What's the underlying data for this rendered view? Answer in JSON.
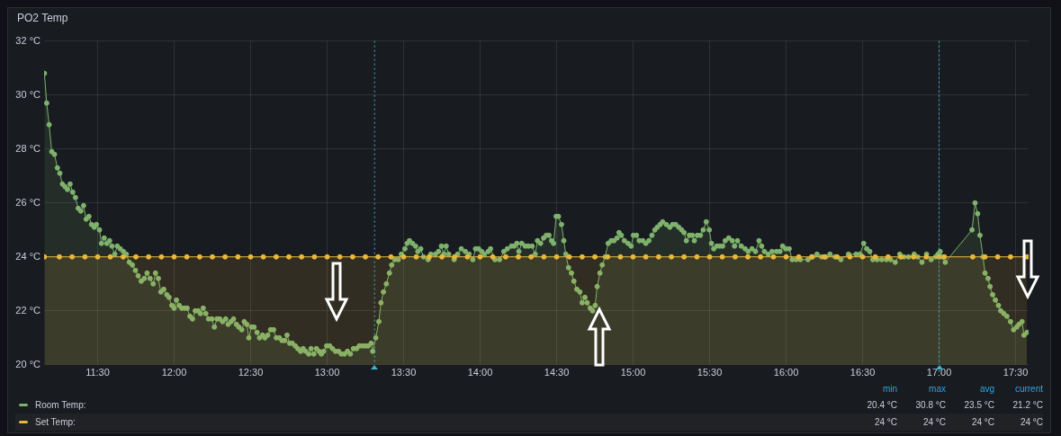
{
  "chart_data": {
    "type": "area",
    "title": "PO2 Temp",
    "marker": "circle",
    "grid": true,
    "legend": "bottom",
    "xlim": [
      11.15,
      17.585
    ],
    "xticks": [
      {
        "value": 11.5,
        "label": "11:30"
      },
      {
        "value": 12,
        "label": "12:00"
      },
      {
        "value": 12.5,
        "label": "12:30"
      },
      {
        "value": 13,
        "label": "13:00"
      },
      {
        "value": 13.5,
        "label": "13:30"
      },
      {
        "value": 14,
        "label": "14:00"
      },
      {
        "value": 14.5,
        "label": "14:30"
      },
      {
        "value": 15,
        "label": "15:00"
      },
      {
        "value": 15.5,
        "label": "15:30"
      },
      {
        "value": 16,
        "label": "16:00"
      },
      {
        "value": 16.5,
        "label": "16:30"
      },
      {
        "value": 17,
        "label": "17:00"
      },
      {
        "value": 17.5,
        "label": "17:30"
      }
    ],
    "ylim": [
      20,
      32
    ],
    "yticks": [
      {
        "value": 20,
        "label": "20 °C"
      },
      {
        "value": 22,
        "label": "22 °C"
      },
      {
        "value": 24,
        "label": "24 °C"
      },
      {
        "value": 26,
        "label": "26 °C"
      },
      {
        "value": 28,
        "label": "28 °C"
      },
      {
        "value": 30,
        "label": "30 °C"
      },
      {
        "value": 32,
        "label": "32 °C"
      }
    ],
    "ref_lines": [
      {
        "axis": "x",
        "value": 13.31,
        "label": null,
        "color": "#3cb4cf",
        "line_style": "dotted"
      },
      {
        "axis": "x",
        "value": 17.0,
        "label": null,
        "color": "#3cb4cf",
        "line_style": "dotted"
      }
    ],
    "annotations": [
      "min",
      "max",
      "avg",
      "current",
      "20.4 °C",
      "30.8 °C",
      "23.5 °C",
      "21.2 °C",
      "24 °C",
      "24 °C",
      "24 °C",
      "24 °C"
    ],
    "series": [
      {
        "name": "Room Temp:",
        "color": "#7eb26d",
        "x": [
          11.152,
          11.167,
          11.183,
          11.2,
          11.218,
          11.237,
          11.253,
          11.27,
          11.287,
          11.303,
          11.32,
          11.337,
          11.355,
          11.373,
          11.39,
          11.408,
          11.425,
          11.443,
          11.46,
          11.478,
          11.492,
          11.512,
          11.525,
          11.543,
          11.56,
          11.578,
          11.593,
          11.612,
          11.628,
          11.648,
          11.668,
          11.687,
          11.707,
          11.727,
          11.747,
          11.765,
          11.785,
          11.805,
          11.823,
          11.843,
          11.863,
          11.878,
          11.897,
          11.913,
          11.932,
          11.952,
          11.967,
          11.985,
          12.0,
          12.015,
          12.033,
          12.05,
          12.068,
          12.085,
          12.103,
          12.12,
          12.138,
          12.157,
          12.172,
          12.19,
          12.207,
          12.225,
          12.247,
          12.263,
          12.28,
          12.298,
          12.317,
          12.337,
          12.353,
          12.372,
          12.388,
          12.407,
          12.423,
          12.442,
          12.458,
          12.475,
          12.488,
          12.505,
          12.522,
          12.542,
          12.558,
          12.578,
          12.593,
          12.612,
          12.63,
          12.65,
          12.668,
          12.688,
          12.705,
          12.723,
          12.738,
          12.755,
          12.772,
          12.792,
          12.808,
          12.827,
          12.843,
          12.86,
          12.88,
          12.895,
          12.913,
          12.93,
          12.947,
          12.962,
          12.977,
          12.997,
          13.017,
          13.035,
          13.055,
          13.075,
          13.093,
          13.113,
          13.133,
          13.152,
          13.172,
          13.192,
          13.21,
          13.23,
          13.25,
          13.268,
          13.288,
          13.298,
          13.318,
          13.338,
          13.352,
          13.368,
          13.387,
          13.407,
          13.422,
          13.442,
          13.465,
          13.485,
          13.508,
          13.523,
          13.538,
          13.558,
          13.578,
          13.593,
          13.612,
          13.63,
          13.66,
          13.678,
          13.708,
          13.728,
          13.747,
          13.763,
          13.778,
          13.795,
          13.83,
          13.853,
          13.877,
          13.903,
          13.928,
          13.952,
          13.97,
          13.99,
          14.01,
          14.028,
          14.053,
          14.068,
          14.097,
          14.127,
          14.155,
          14.178,
          14.205,
          14.223,
          14.24,
          14.253,
          14.272,
          14.295,
          14.315,
          14.34,
          14.36,
          14.375,
          14.395,
          14.415,
          14.433,
          14.45,
          14.467,
          14.48,
          14.497,
          14.512,
          14.532,
          14.547,
          14.56,
          14.578,
          14.597,
          14.613,
          14.632,
          14.652,
          14.667,
          14.685,
          14.7,
          14.72,
          14.735,
          14.752,
          14.765,
          14.783,
          14.798,
          14.817,
          14.837,
          14.857,
          14.875,
          14.895,
          14.908,
          14.923,
          14.943,
          14.967,
          14.987,
          15.002,
          15.022,
          15.04,
          15.063,
          15.083,
          15.103,
          15.123,
          15.142,
          15.158,
          15.177,
          15.193,
          15.217,
          15.24,
          15.258,
          15.278,
          15.298,
          15.317,
          15.333,
          15.348,
          15.368,
          15.387,
          15.4,
          15.42,
          15.44,
          15.458,
          15.478,
          15.498,
          15.512,
          15.527,
          15.547,
          15.567,
          15.585,
          15.602,
          15.625,
          15.648,
          15.663,
          15.682,
          15.707,
          15.732,
          15.752,
          15.777,
          15.8,
          15.823,
          15.84,
          15.858,
          15.883,
          15.908,
          15.937,
          15.96,
          15.977,
          15.997,
          16.02,
          16.04,
          16.065,
          16.093,
          16.143,
          16.173,
          16.202,
          16.232,
          16.26,
          16.287,
          16.32,
          16.358,
          16.408,
          16.457,
          16.483,
          16.507,
          16.527,
          16.547,
          16.567,
          16.595,
          16.625,
          16.655,
          16.683,
          16.713,
          16.743,
          16.77,
          16.8,
          16.837,
          16.86,
          16.888,
          16.918,
          16.948,
          16.977,
          16.993,
          17.007,
          17.02,
          17.04,
          17.215,
          17.235,
          17.252,
          17.267,
          17.287,
          17.3,
          17.32,
          17.333,
          17.35,
          17.368,
          17.388,
          17.403,
          17.423,
          17.443,
          17.467,
          17.487,
          17.507,
          17.522,
          17.542,
          17.555,
          17.575
        ],
        "values": [
          30.8,
          29.7,
          28.9,
          27.9,
          27.8,
          27.3,
          27.1,
          26.7,
          26.6,
          26.5,
          26.7,
          26.4,
          26.2,
          25.8,
          25.7,
          25.9,
          25.4,
          25.5,
          25.2,
          25.1,
          25.2,
          25.0,
          24.5,
          24.7,
          24.5,
          24.6,
          24.4,
          24.1,
          24.4,
          24.3,
          24.2,
          24.1,
          23.8,
          23.7,
          23.5,
          23.3,
          23.1,
          23.2,
          23.4,
          23.2,
          23.0,
          23.4,
          23.2,
          22.7,
          22.8,
          22.6,
          22.5,
          22.2,
          22.1,
          22.4,
          22.2,
          22.1,
          22.1,
          22.1,
          21.8,
          21.7,
          22.0,
          22.0,
          21.9,
          22.1,
          21.9,
          21.7,
          21.7,
          21.4,
          21.7,
          21.7,
          21.6,
          21.7,
          21.5,
          21.6,
          21.7,
          21.5,
          21.4,
          21.3,
          21.6,
          21.5,
          21.0,
          21.4,
          21.4,
          21.2,
          21.0,
          21.1,
          21.0,
          21.1,
          21.3,
          21.3,
          21.0,
          21.0,
          20.9,
          20.9,
          21.1,
          20.8,
          20.8,
          20.7,
          20.6,
          20.5,
          20.6,
          20.5,
          20.4,
          20.6,
          20.4,
          20.6,
          20.5,
          20.4,
          20.5,
          20.7,
          20.7,
          20.6,
          20.5,
          20.5,
          20.4,
          20.4,
          20.5,
          20.4,
          20.6,
          20.6,
          20.7,
          20.7,
          20.7,
          20.7,
          20.8,
          20.5,
          21.0,
          21.6,
          22.3,
          22.7,
          23.0,
          23.4,
          23.7,
          23.9,
          23.9,
          24.1,
          24.3,
          24.5,
          24.6,
          24.5,
          24.4,
          24.2,
          24.3,
          24.0,
          23.9,
          24.1,
          24.1,
          24.2,
          24.4,
          24.1,
          24.4,
          24.1,
          23.9,
          24.1,
          24.3,
          24.2,
          24.1,
          23.9,
          24.3,
          24.3,
          24.2,
          24.1,
          24.2,
          24.3,
          23.9,
          23.9,
          24.2,
          24.3,
          24.4,
          24.4,
          24.5,
          24.2,
          24.5,
          24.4,
          24.4,
          24.4,
          24.1,
          24.6,
          24.5,
          24.7,
          24.8,
          24.8,
          24.6,
          24.5,
          25.5,
          25.5,
          25.2,
          24.6,
          24.1,
          23.6,
          23.4,
          23.1,
          22.8,
          22.7,
          22.3,
          22.5,
          22.3,
          22.1,
          22.0,
          22.2,
          22.9,
          23.4,
          23.7,
          24.0,
          24.5,
          24.6,
          24.6,
          24.7,
          24.9,
          24.8,
          24.6,
          24.5,
          24.4,
          24.8,
          24.8,
          24.6,
          24.6,
          24.5,
          24.6,
          24.8,
          25.0,
          25.1,
          25.2,
          25.3,
          25.2,
          25.1,
          25.2,
          25.2,
          25.1,
          25.0,
          24.9,
          24.6,
          24.8,
          24.8,
          24.6,
          24.8,
          24.8,
          25.0,
          25.3,
          25.0,
          24.5,
          24.3,
          24.4,
          24.4,
          24.4,
          24.6,
          24.7,
          24.6,
          24.4,
          24.6,
          24.4,
          24.3,
          24.2,
          24.3,
          24.2,
          24.6,
          24.4,
          24.2,
          24.1,
          24.2,
          24.2,
          24.2,
          24.4,
          24.3,
          24.3,
          23.9,
          23.9,
          23.9,
          23.9,
          24.0,
          24.1,
          24.0,
          24.0,
          24.1,
          24.0,
          23.9,
          24.1,
          24.1,
          24.1,
          24.5,
          24.3,
          24.2,
          23.9,
          23.9,
          23.9,
          23.9,
          23.9,
          23.8,
          24.1,
          24.0,
          24.0,
          24.1,
          24.0,
          23.8,
          24.1,
          23.9,
          24.0,
          24.1,
          24.2,
          24.0,
          23.8,
          25.0,
          26.0,
          25.6,
          24.8,
          24.0,
          23.4,
          23.2,
          22.9,
          22.6,
          22.4,
          22.2,
          22.0,
          21.9,
          21.8,
          21.6,
          21.3,
          21.4,
          21.5,
          21.6,
          21.1,
          21.2
        ]
      },
      {
        "name": "Set Temp:",
        "color": "#eab839",
        "x": [
          11.152,
          11.25,
          11.333,
          11.417,
          11.5,
          11.583,
          11.667,
          11.75,
          11.833,
          11.917,
          12.0,
          12.083,
          12.167,
          12.25,
          12.333,
          12.417,
          12.5,
          12.583,
          12.667,
          12.75,
          12.833,
          12.917,
          13.0,
          13.083,
          13.167,
          13.25,
          13.333,
          13.417,
          13.5,
          13.583,
          13.667,
          13.75,
          13.833,
          13.917,
          14.0,
          14.083,
          14.167,
          14.25,
          14.333,
          14.417,
          14.5,
          14.583,
          14.667,
          14.75,
          14.833,
          14.917,
          15.0,
          15.083,
          15.167,
          15.25,
          15.333,
          15.417,
          15.5,
          15.583,
          15.667,
          15.75,
          15.833,
          15.917,
          16.0,
          16.083,
          16.167,
          16.25,
          16.333,
          16.417,
          16.5,
          16.583,
          16.667,
          16.75,
          16.833,
          16.917,
          17.0,
          17.035,
          17.22,
          17.3,
          17.383,
          17.467,
          17.575
        ],
        "values": [
          24,
          24,
          24,
          24,
          24,
          24,
          24,
          24,
          24,
          24,
          24,
          24,
          24,
          24,
          24,
          24,
          24,
          24,
          24,
          24,
          24,
          24,
          24,
          24,
          24,
          24,
          24,
          24,
          24,
          24,
          24,
          24,
          24,
          24,
          24,
          24,
          24,
          24,
          24,
          24,
          24,
          24,
          24,
          24,
          24,
          24,
          24,
          24,
          24,
          24,
          24,
          24,
          24,
          24,
          24,
          24,
          24,
          24,
          24,
          24,
          24,
          24,
          24,
          24,
          24,
          24,
          24,
          24,
          24,
          24,
          24,
          24,
          24,
          24,
          24,
          24,
          24
        ]
      }
    ]
  }
}
